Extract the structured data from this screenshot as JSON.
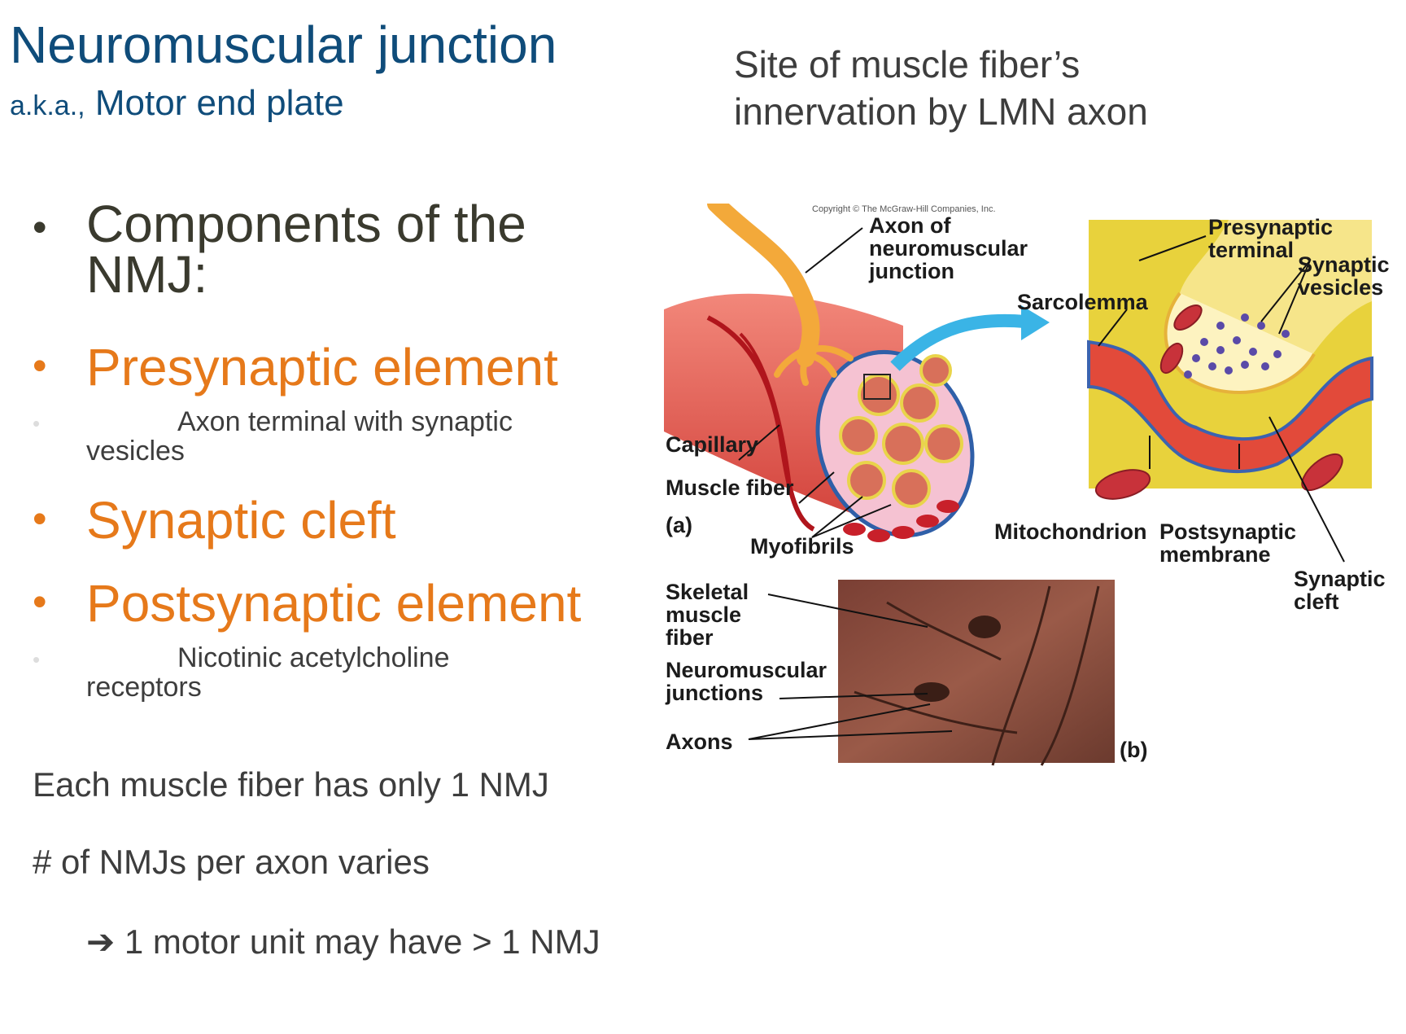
{
  "header": {
    "title": "Neuromuscular junction",
    "subtitle_prefix": "a.k.a.,",
    "subtitle": "Motor end plate",
    "side_line1": "Site of muscle fiber’s",
    "side_line2": "innervation by LMN axon"
  },
  "bullets": {
    "components": "Components of the NMJ:",
    "presynaptic": "Presynaptic element",
    "presynaptic_sub": "Axon terminal with synaptic vesicles",
    "cleft": "Synaptic cleft",
    "postsynaptic": "Postsynaptic element",
    "postsynaptic_sub": "Nicotinic acetylcholine receptors"
  },
  "statements": {
    "one_nmj": "Each muscle fiber has only 1 NMJ",
    "per_axon": "# of NMJs per axon varies",
    "arrow": "➔",
    "motor_unit": "1 motor unit may have > 1 NMJ"
  },
  "figure": {
    "copyright": "Copyright © The McGraw-Hill Companies, Inc.",
    "axon_label": "Axon of neuromuscular junction",
    "presynaptic_terminal": "Presynaptic terminal",
    "synaptic_vesicles": "Synaptic vesicles",
    "sarcolemma": "Sarcolemma",
    "capillary": "Capillary",
    "muscle_fiber": "Muscle fiber",
    "panel_a": "(a)",
    "myofibrils": "Myofibrils",
    "mitochondrion": "Mitochondrion",
    "postsynaptic_membrane": "Postsynaptic membrane",
    "synaptic_cleft": "Synaptic cleft",
    "skeletal_muscle_fiber": "Skeletal muscle fiber",
    "neuromuscular_junctions": "Neuromuscular junctions",
    "axons": "Axons",
    "panel_b": "(b)"
  },
  "colors": {
    "title_blue": "#0f4c7a",
    "accent_orange": "#e6791a",
    "body_text": "#3d3d3d"
  }
}
